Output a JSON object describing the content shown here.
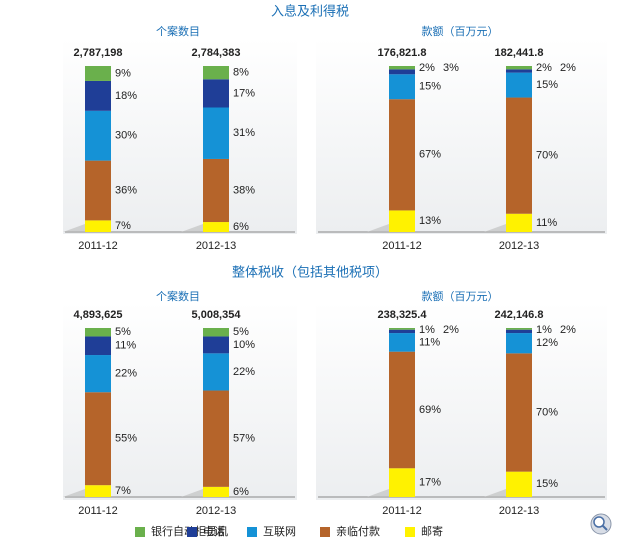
{
  "headings": [
    "入息及利得税",
    "整体税收（包括其他税项）"
  ],
  "chart_data": [
    {
      "type": "bar",
      "stacked": true,
      "title": "个案数目",
      "categories": [
        "2011-12",
        "2012-13"
      ],
      "ylim": [
        0,
        100
      ],
      "totals": [
        {
          "value": 2787198,
          "label": "2,787,198"
        },
        {
          "value": 2784383,
          "label": "2,784,383"
        }
      ],
      "series": [
        {
          "name": "银行自动柜员机",
          "color": "#6ab04c",
          "values": [
            9,
            8
          ],
          "value_labels": [
            "9%",
            "8%"
          ]
        },
        {
          "name": "电话",
          "color": "#1f3e97",
          "values": [
            18,
            17
          ],
          "value_labels": [
            "18%",
            "17%"
          ]
        },
        {
          "name": "互联网",
          "color": "#1592d6",
          "values": [
            30,
            31
          ],
          "value_labels": [
            "30%",
            "31%"
          ]
        },
        {
          "name": "亲临付款",
          "color": "#b5642a",
          "values": [
            36,
            38
          ],
          "value_labels": [
            "36%",
            "38%"
          ]
        },
        {
          "name": "邮寄",
          "color": "#fff200",
          "values": [
            7,
            6
          ],
          "value_labels": [
            "7%",
            "6%"
          ]
        }
      ]
    },
    {
      "type": "bar",
      "stacked": true,
      "title": "款额（百万元）",
      "categories": [
        "2011-12",
        "2012-13"
      ],
      "ylim": [
        0,
        100
      ],
      "totals": [
        {
          "value": 176821.8,
          "label": "176,821.8"
        },
        {
          "value": 182441.8,
          "label": "182,441.8"
        }
      ],
      "series": [
        {
          "name": "银行自动柜员机",
          "color": "#6ab04c",
          "values": [
            2,
            2
          ],
          "value_labels": [
            "2%",
            "2%"
          ]
        },
        {
          "name": "电话",
          "color": "#1f3e97",
          "values": [
            3,
            2
          ],
          "value_labels": [
            "3%",
            "2%"
          ]
        },
        {
          "name": "互联网",
          "color": "#1592d6",
          "values": [
            15,
            15
          ],
          "value_labels": [
            "15%",
            "15%"
          ]
        },
        {
          "name": "亲临付款",
          "color": "#b5642a",
          "values": [
            67,
            70
          ],
          "value_labels": [
            "67%",
            "70%"
          ]
        },
        {
          "name": "邮寄",
          "color": "#fff200",
          "values": [
            13,
            11
          ],
          "value_labels": [
            "13%",
            "11%"
          ]
        }
      ]
    },
    {
      "type": "bar",
      "stacked": true,
      "title": "个案数目",
      "categories": [
        "2011-12",
        "2012-13"
      ],
      "ylim": [
        0,
        100
      ],
      "totals": [
        {
          "value": 4893625,
          "label": "4,893,625"
        },
        {
          "value": 5008354,
          "label": "5,008,354"
        }
      ],
      "series": [
        {
          "name": "银行自动柜员机",
          "color": "#6ab04c",
          "values": [
            5,
            5
          ],
          "value_labels": [
            "5%",
            "5%"
          ]
        },
        {
          "name": "电话",
          "color": "#1f3e97",
          "values": [
            11,
            10
          ],
          "value_labels": [
            "11%",
            "10%"
          ]
        },
        {
          "name": "互联网",
          "color": "#1592d6",
          "values": [
            22,
            22
          ],
          "value_labels": [
            "22%",
            "22%"
          ]
        },
        {
          "name": "亲临付款",
          "color": "#b5642a",
          "values": [
            55,
            57
          ],
          "value_labels": [
            "55%",
            "57%"
          ]
        },
        {
          "name": "邮寄",
          "color": "#fff200",
          "values": [
            7,
            6
          ],
          "value_labels": [
            "7%",
            "6%"
          ]
        }
      ]
    },
    {
      "type": "bar",
      "stacked": true,
      "title": "款额（百万元）",
      "categories": [
        "2011-12",
        "2012-13"
      ],
      "ylim": [
        0,
        100
      ],
      "totals": [
        {
          "value": 238325.4,
          "label": "238,325.4"
        },
        {
          "value": 242146.8,
          "label": "242,146.8"
        }
      ],
      "series": [
        {
          "name": "银行自动柜员机",
          "color": "#6ab04c",
          "values": [
            1,
            1
          ],
          "value_labels": [
            "1%",
            "1%"
          ]
        },
        {
          "name": "电话",
          "color": "#1f3e97",
          "values": [
            2,
            2
          ],
          "value_labels": [
            "2%",
            "2%"
          ]
        },
        {
          "name": "互联网",
          "color": "#1592d6",
          "values": [
            11,
            12
          ],
          "value_labels": [
            "11%",
            "12%"
          ]
        },
        {
          "name": "亲临付款",
          "color": "#b5642a",
          "values": [
            69,
            70
          ],
          "value_labels": [
            "69%",
            "70%"
          ]
        },
        {
          "name": "邮寄",
          "color": "#fff200",
          "values": [
            17,
            15
          ],
          "value_labels": [
            "17%",
            "15%"
          ]
        }
      ]
    }
  ]
}
